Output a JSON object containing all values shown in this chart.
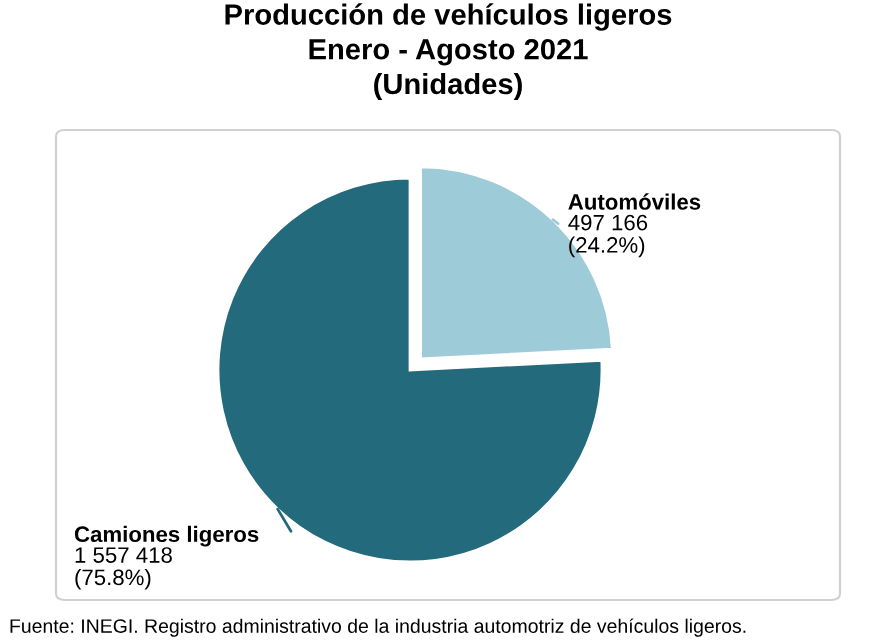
{
  "chart_data": {
    "type": "pie",
    "title": "Producción de vehículos ligeros\nEnero - Agosto 2021\n(Unidades)",
    "categories": [
      "Automóviles",
      "Camiones ligeros"
    ],
    "values": [
      497166,
      1557418
    ],
    "colors": [
      "#9ecbd8",
      "#236a7c"
    ],
    "value_labels": [
      "497 166\n(24.2%)",
      "1 557 418\n(75.8%)"
    ],
    "annotations": [
      "Fuente: INEGI. Registro administrativo de la industria automotriz de vehículos ligeros."
    ]
  }
}
